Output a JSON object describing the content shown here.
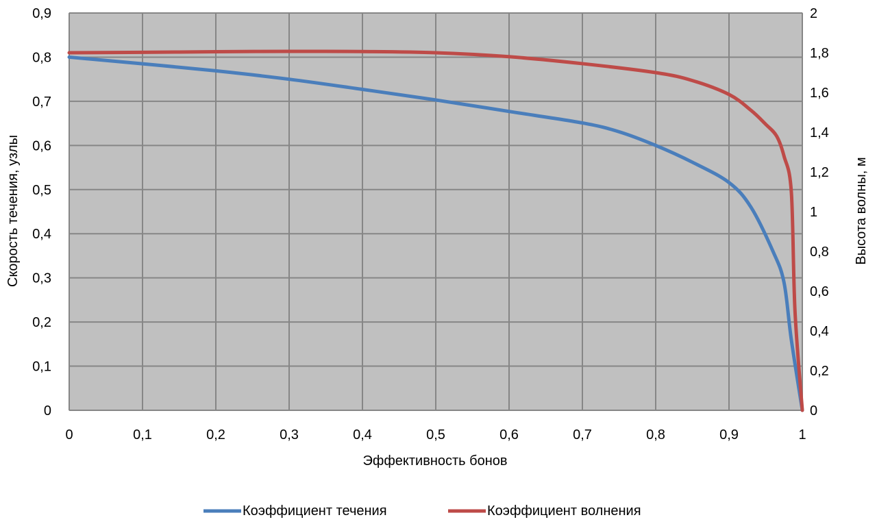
{
  "chart_data": {
    "type": "line",
    "title": "",
    "xlabel": "Эффективность бонов",
    "ylabel": "Скорость течения, узлы",
    "y2label": "Высота волны, м",
    "xlim": [
      0,
      1
    ],
    "ylim": [
      0,
      0.9
    ],
    "y2lim": [
      0,
      2
    ],
    "x_ticks": [
      "0",
      "0,1",
      "0,2",
      "0,3",
      "0,4",
      "0,5",
      "0,6",
      "0,7",
      "0,8",
      "0,9",
      "1"
    ],
    "y_ticks": [
      "0",
      "0,1",
      "0,2",
      "0,3",
      "0,4",
      "0,5",
      "0,6",
      "0,7",
      "0,8",
      "0,9"
    ],
    "y2_ticks": [
      "0",
      "0,2",
      "0,4",
      "0,6",
      "0,8",
      "1",
      "1,2",
      "1,4",
      "1,6",
      "1,8",
      "2"
    ],
    "grid": true,
    "plot_background": "#c0c0c0",
    "legend_position": "bottom",
    "series": [
      {
        "name": "Коэффициент течения",
        "axis": "left",
        "color": "#4a7ebb",
        "x": [
          0,
          0.1,
          0.2,
          0.3,
          0.4,
          0.5,
          0.6,
          0.7,
          0.75,
          0.8,
          0.85,
          0.9,
          0.93,
          0.96,
          0.975,
          0.985,
          1.0
        ],
        "y": [
          0.8,
          0.785,
          0.769,
          0.75,
          0.727,
          0.703,
          0.677,
          0.651,
          0.631,
          0.6,
          0.562,
          0.516,
          0.46,
          0.36,
          0.29,
          0.16,
          0.0
        ]
      },
      {
        "name": "Коэффициент волнения",
        "axis": "right",
        "color": "#be4b48",
        "x": [
          0,
          0.1,
          0.2,
          0.3,
          0.4,
          0.5,
          0.6,
          0.7,
          0.8,
          0.85,
          0.9,
          0.93,
          0.95,
          0.965,
          0.975,
          0.985,
          0.99,
          1.0
        ],
        "y": [
          1.8,
          1.802,
          1.805,
          1.807,
          1.806,
          1.8,
          1.78,
          1.745,
          1.7,
          1.66,
          1.59,
          1.51,
          1.44,
          1.38,
          1.28,
          1.1,
          0.5,
          0.0
        ]
      }
    ]
  }
}
